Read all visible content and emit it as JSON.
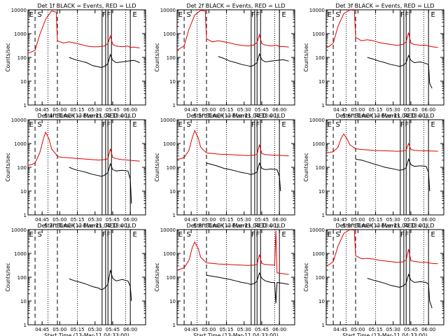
{
  "common": {
    "x_ticks": [
      "04:45",
      "05:00",
      "05:15",
      "05:30",
      "05:45",
      "06:00"
    ],
    "xlabel": "Start Time (13-Mar-11 04:33:00)",
    "ylabel": "Counts/sec",
    "y_ticks": [
      "1",
      "10",
      "100",
      "1000",
      "10000"
    ],
    "ylim": [
      1,
      10000
    ],
    "y_scale": "log",
    "xlim_minutes_since_0433": [
      0,
      100
    ],
    "colors": {
      "events": "#000000",
      "lld": "#e00000",
      "frame": "#000000"
    },
    "markers": {
      "dashed_minutes": [
        6,
        25
      ],
      "dotted_minutes": [
        17,
        42,
        83
      ],
      "solid_minutes": [
        63,
        66,
        68,
        71,
        87
      ],
      "letters": [
        "E",
        "S",
        "F",
        "F",
        "E"
      ]
    }
  },
  "chart_data": [
    {
      "type": "line",
      "title": "Det 1f BLACK = Events, RED = LLD",
      "series": [
        {
          "name": "Events",
          "x": [
            35,
            40,
            45,
            50,
            55,
            60,
            62,
            64,
            66,
            68,
            70,
            72,
            75,
            80,
            85,
            90,
            95
          ],
          "y": [
            100,
            80,
            70,
            60,
            45,
            40,
            38,
            40,
            45,
            55,
            130,
            75,
            60,
            65,
            70,
            75,
            60
          ]
        },
        {
          "name": "LLD",
          "x": [
            0,
            3,
            6,
            10,
            15,
            20,
            24,
            25,
            30,
            35,
            40,
            45,
            50,
            55,
            60,
            65,
            68,
            70,
            72,
            75,
            80,
            85,
            87,
            90,
            95
          ],
          "y": [
            150,
            170,
            200,
            900,
            4000,
            9000,
            8000,
            500,
            400,
            450,
            400,
            350,
            300,
            280,
            280,
            300,
            380,
            800,
            350,
            300,
            280,
            300,
            260,
            270,
            250
          ]
        }
      ]
    },
    {
      "type": "line",
      "title": "Det 2f BLACK = Events, RED = LLD",
      "series": [
        {
          "name": "Events",
          "x": [
            35,
            40,
            45,
            50,
            55,
            60,
            62,
            64,
            66,
            68,
            70,
            72,
            75,
            80,
            85,
            90,
            95
          ],
          "y": [
            110,
            90,
            70,
            60,
            50,
            45,
            42,
            44,
            50,
            60,
            140,
            80,
            65,
            70,
            75,
            80,
            70
          ]
        },
        {
          "name": "LLD",
          "x": [
            0,
            3,
            6,
            10,
            15,
            20,
            24,
            25,
            30,
            35,
            40,
            45,
            50,
            55,
            60,
            65,
            68,
            70,
            72,
            75,
            80,
            85,
            87,
            90,
            95
          ],
          "y": [
            200,
            250,
            300,
            1500,
            6000,
            9500,
            9000,
            600,
            450,
            500,
            450,
            400,
            350,
            320,
            300,
            330,
            420,
            900,
            380,
            330,
            300,
            320,
            280,
            290,
            270
          ]
        }
      ]
    },
    {
      "type": "line",
      "title": "Det 3f BLACK = Events, RED = LLD",
      "series": [
        {
          "name": "Events",
          "x": [
            35,
            40,
            45,
            50,
            55,
            60,
            62,
            64,
            66,
            68,
            70,
            72,
            75,
            80,
            85,
            87,
            88,
            90
          ],
          "y": [
            100,
            85,
            70,
            60,
            50,
            45,
            42,
            44,
            48,
            60,
            120,
            75,
            60,
            65,
            55,
            50,
            8,
            5
          ]
        },
        {
          "name": "LLD",
          "x": [
            0,
            3,
            6,
            10,
            15,
            20,
            24,
            25,
            30,
            35,
            40,
            45,
            50,
            55,
            60,
            65,
            68,
            70,
            72,
            75,
            80,
            85,
            87,
            90,
            95
          ],
          "y": [
            250,
            300,
            400,
            2000,
            7000,
            9800,
            9500,
            700,
            500,
            550,
            500,
            420,
            380,
            350,
            320,
            350,
            450,
            1100,
            400,
            350,
            320,
            330,
            300,
            280,
            260
          ]
        }
      ]
    },
    {
      "type": "line",
      "title": "Det 4f BLACK = Events, RED = LLD",
      "series": [
        {
          "name": "Events",
          "x": [
            35,
            40,
            45,
            50,
            55,
            60,
            62,
            64,
            66,
            68,
            70,
            72,
            75,
            80,
            85,
            87,
            88
          ],
          "y": [
            100,
            80,
            70,
            60,
            50,
            45,
            42,
            44,
            50,
            60,
            140,
            80,
            70,
            75,
            70,
            30,
            3
          ]
        },
        {
          "name": "LLD",
          "x": [
            0,
            3,
            6,
            10,
            13,
            15,
            18,
            20,
            24,
            25,
            30,
            35,
            40,
            45,
            50,
            55,
            60,
            65,
            68,
            70,
            72,
            75,
            80,
            85,
            90,
            95
          ],
          "y": [
            120,
            130,
            150,
            400,
            1500,
            3000,
            1500,
            600,
            350,
            280,
            260,
            250,
            240,
            230,
            220,
            210,
            200,
            210,
            230,
            600,
            260,
            230,
            210,
            200,
            190,
            180
          ]
        }
      ]
    },
    {
      "type": "line",
      "title": "Det 5f BLACK = Events, RED = LLD",
      "series": [
        {
          "name": "Events",
          "x": [
            25,
            30,
            35,
            40,
            45,
            50,
            55,
            60,
            62,
            64,
            66,
            68,
            70,
            72,
            75,
            80,
            85,
            87,
            88
          ],
          "y": [
            150,
            130,
            110,
            90,
            80,
            70,
            60,
            55,
            50,
            52,
            55,
            65,
            150,
            90,
            80,
            85,
            80,
            40,
            10
          ]
        },
        {
          "name": "LLD",
          "x": [
            0,
            3,
            6,
            10,
            13,
            15,
            18,
            20,
            24,
            25,
            30,
            35,
            40,
            45,
            50,
            55,
            60,
            65,
            68,
            70,
            72,
            75,
            80,
            85,
            90,
            95
          ],
          "y": [
            220,
            230,
            260,
            500,
            1800,
            3500,
            1700,
            700,
            450,
            400,
            380,
            360,
            350,
            340,
            330,
            320,
            310,
            320,
            350,
            900,
            380,
            340,
            330,
            320,
            310,
            300
          ]
        }
      ]
    },
    {
      "type": "line",
      "title": "Det 6f BLACK = Events, RED = LLD",
      "series": [
        {
          "name": "Events",
          "x": [
            25,
            30,
            35,
            40,
            45,
            50,
            55,
            60,
            62,
            64,
            66,
            68,
            70,
            72,
            75,
            80,
            85,
            87,
            88
          ],
          "y": [
            220,
            200,
            170,
            140,
            120,
            100,
            90,
            80,
            75,
            78,
            82,
            95,
            220,
            130,
            110,
            115,
            110,
            60,
            10
          ]
        },
        {
          "name": "LLD",
          "x": [
            0,
            3,
            6,
            10,
            13,
            15,
            18,
            20,
            24,
            25,
            30,
            35,
            40,
            45,
            50,
            55,
            60,
            65,
            68,
            70,
            72,
            75,
            80,
            85,
            90,
            95
          ],
          "y": [
            400,
            420,
            450,
            700,
            1800,
            2500,
            1500,
            900,
            650,
            600,
            560,
            540,
            520,
            500,
            490,
            480,
            470,
            480,
            520,
            1000,
            560,
            520,
            500,
            490,
            480,
            470
          ]
        }
      ]
    },
    {
      "type": "line",
      "title": "Det 7f BLACK = Events, RED = LLD",
      "series": [
        {
          "name": "Events",
          "x": [
            35,
            40,
            45,
            50,
            55,
            60,
            62,
            64,
            66,
            68,
            70,
            72,
            75,
            80,
            85,
            87,
            88
          ],
          "y": [
            85,
            70,
            60,
            50,
            40,
            35,
            30,
            32,
            38,
            50,
            200,
            90,
            70,
            80,
            70,
            40,
            10
          ]
        }
      ]
    },
    {
      "type": "line",
      "title": "Det 8f BLACK = Events, RED = LLD",
      "series": [
        {
          "name": "Events",
          "x": [
            25,
            30,
            35,
            40,
            45,
            50,
            55,
            60,
            62,
            64,
            66,
            68,
            70,
            72,
            75,
            80,
            83,
            84,
            85,
            90,
            95
          ],
          "y": [
            120,
            110,
            100,
            90,
            80,
            70,
            60,
            55,
            50,
            52,
            55,
            70,
            150,
            90,
            70,
            60,
            60,
            8,
            60,
            55,
            50
          ]
        },
        {
          "name": "LLD",
          "x": [
            0,
            3,
            6,
            10,
            13,
            15,
            18,
            20,
            24,
            25,
            30,
            35,
            40,
            45,
            50,
            55,
            60,
            65,
            68,
            70,
            72,
            75,
            80,
            83,
            84,
            85,
            86,
            90,
            95
          ],
          "y": [
            200,
            220,
            250,
            500,
            1800,
            3000,
            1600,
            700,
            450,
            400,
            380,
            360,
            350,
            340,
            330,
            320,
            310,
            320,
            350,
            900,
            380,
            340,
            330,
            320,
            9000,
            150,
            150,
            140,
            130
          ]
        }
      ]
    },
    {
      "type": "line",
      "title": "Det 9f BLACK = Events, RED = LLD",
      "series": [
        {
          "name": "Events",
          "x": [
            35,
            40,
            45,
            50,
            55,
            60,
            62,
            64,
            66,
            68,
            70,
            72,
            75,
            80,
            85,
            87,
            88,
            90
          ],
          "y": [
            90,
            75,
            65,
            55,
            45,
            40,
            38,
            40,
            45,
            55,
            130,
            75,
            60,
            65,
            60,
            50,
            10,
            5
          ]
        },
        {
          "name": "LLD",
          "x": [
            0,
            3,
            6,
            10,
            15,
            20,
            24,
            25,
            30,
            35,
            40,
            45,
            50,
            55,
            60,
            65,
            68,
            70,
            72,
            75,
            80,
            85,
            87,
            90,
            95
          ],
          "y": [
            300,
            350,
            450,
            2000,
            7000,
            9800,
            9500,
            800,
            600,
            620,
            580,
            520,
            480,
            450,
            420,
            440,
            520,
            1500,
            500,
            460,
            430,
            420,
            400,
            380,
            370
          ]
        }
      ]
    }
  ]
}
